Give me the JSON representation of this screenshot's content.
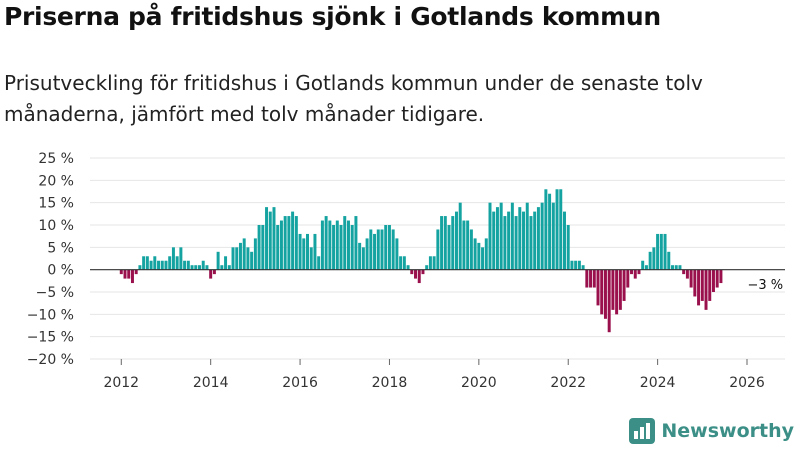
{
  "header": {
    "title": "Priserna på fritidshus sjönk i Gotlands kommun",
    "subtitle": "Prisutveckling för fritidshus i Gotlands kommun under de senaste tolv månaderna, jämfört med tolv månader tidigare."
  },
  "branding": {
    "name": "Newsworthy"
  },
  "colors": {
    "positive": "#14a3a0",
    "negative": "#99104d",
    "grid": "#e6e6e6",
    "axis": "#333333",
    "brand": "#3b8f86"
  },
  "chart_data": {
    "type": "bar",
    "title": "Priserna på fritidshus sjönk i Gotlands kommun",
    "xlabel": "",
    "ylabel": "",
    "x_unit": "year",
    "xlim": [
      2011.3,
      2026.85
    ],
    "ylim": [
      -20,
      25
    ],
    "yticks": [
      25,
      20,
      15,
      10,
      5,
      0,
      -5,
      -10,
      -15,
      -20
    ],
    "ytick_labels": [
      "25 %",
      "20 %",
      "15 %",
      "10 %",
      "5 %",
      "0 %",
      "−5 %",
      "−10 %",
      "−15 %",
      "−20 %"
    ],
    "xticks": [
      2012,
      2014,
      2016,
      2018,
      2020,
      2022,
      2024,
      2026
    ],
    "xtick_labels": [
      "2012",
      "2014",
      "2016",
      "2018",
      "2020",
      "2022",
      "2024",
      "2026"
    ],
    "grid": true,
    "series": [
      {
        "name": "Prisutveckling",
        "start": 2012.0,
        "step": 0.08333,
        "values": [
          -1,
          -2,
          -2,
          -3,
          -1,
          1,
          3,
          3,
          2,
          3,
          2,
          2,
          2,
          3,
          5,
          3,
          5,
          2,
          2,
          1,
          1,
          1,
          2,
          1,
          -2,
          -1,
          4,
          1,
          3,
          1,
          5,
          5,
          6,
          7,
          5,
          4,
          7,
          10,
          10,
          14,
          13,
          14,
          10,
          11,
          12,
          12,
          13,
          12,
          8,
          7,
          8,
          5,
          8,
          3,
          11,
          12,
          11,
          10,
          11,
          10,
          12,
          11,
          10,
          12,
          6,
          5,
          7,
          9,
          8,
          9,
          9,
          10,
          10,
          9,
          7,
          3,
          3,
          1,
          -1,
          -2,
          -3,
          -1,
          1,
          3,
          3,
          9,
          12,
          12,
          10,
          12,
          13,
          15,
          11,
          11,
          9,
          7,
          6,
          5,
          7,
          15,
          13,
          14,
          15,
          12,
          13,
          15,
          12,
          14,
          13,
          15,
          12,
          13,
          14,
          15,
          18,
          17,
          15,
          18,
          18,
          13,
          10,
          2,
          2,
          2,
          1,
          -4,
          -4,
          -4,
          -8,
          -10,
          -11,
          -14,
          -9,
          -10,
          -9,
          -7,
          -4,
          -1,
          -2,
          -1,
          2,
          1,
          4,
          5,
          8,
          8,
          8,
          4,
          1,
          1,
          1,
          -1,
          -2,
          -4,
          -6,
          -8,
          -7,
          -9,
          -7,
          -5,
          -4,
          -3
        ]
      }
    ],
    "annotations": [
      {
        "text": "−3 %",
        "x": 2026.1,
        "y": -3
      }
    ]
  }
}
